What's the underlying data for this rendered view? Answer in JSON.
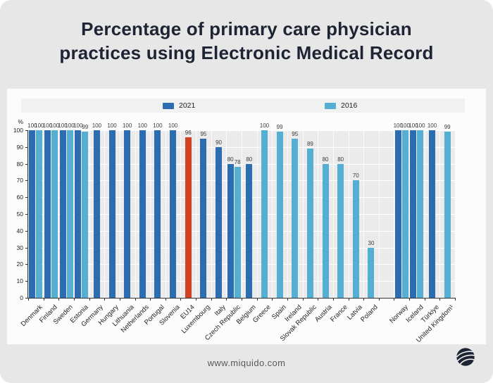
{
  "title": "Percentage of primary care physician practices using Electronic Medical Record",
  "footer": {
    "url": "www.miquido.com",
    "logo": "miquido-logo"
  },
  "chart_data": {
    "type": "bar",
    "title": "Percentage of primary care physician practices using Electronic Medical Record",
    "unit_label": "%",
    "xlabel": "",
    "ylabel": "%",
    "ylim": [
      0,
      100
    ],
    "yticks": [
      0,
      10,
      20,
      30,
      40,
      50,
      60,
      70,
      80,
      90,
      100
    ],
    "grid": "on",
    "legend_position": "top",
    "legend": [
      {
        "label": "2021",
        "color": "#2c6db2"
      },
      {
        "label": "2016",
        "color": "#54afd3"
      }
    ],
    "colors": {
      "s2021": "#2c6db2",
      "s2016": "#54afd3",
      "highlight": "#cd4323",
      "plot_background": "#ebebec"
    },
    "countries": [
      {
        "name": "Denmark",
        "y2021": 100,
        "y2016": 100
      },
      {
        "name": "Finland",
        "y2021": 100,
        "y2016": 100
      },
      {
        "name": "Sweden",
        "y2021": 100,
        "y2016": 100
      },
      {
        "name": "Estonia",
        "y2021": 100,
        "y2016": 99
      },
      {
        "name": "Germany",
        "y2021": 100
      },
      {
        "name": "Hungary",
        "y2021": 100
      },
      {
        "name": "Lithuania",
        "y2021": 100
      },
      {
        "name": "Netherlands",
        "y2021": 100
      },
      {
        "name": "Portugal",
        "y2021": 100
      },
      {
        "name": "Slovenia",
        "y2021": 100
      },
      {
        "name": "EU14",
        "y2021": 96,
        "highlight": true
      },
      {
        "name": "Luxembourg",
        "y2021": 95
      },
      {
        "name": "Italy",
        "y2021": 90
      },
      {
        "name": "Czech Republic",
        "y2021": 80,
        "y2016": 78
      },
      {
        "name": "Belgium",
        "y2021": 80
      },
      {
        "name": "Greece",
        "y2016": 100
      },
      {
        "name": "Spain",
        "y2016": 99
      },
      {
        "name": "Ireland",
        "y2016": 95
      },
      {
        "name": "Slovak Republic",
        "y2016": 89
      },
      {
        "name": "Austria",
        "y2016": 80
      },
      {
        "name": "France",
        "y2016": 80
      },
      {
        "name": "Latvia",
        "y2016": 70
      },
      {
        "name": "Poland",
        "y2016": 30
      },
      {
        "name": "",
        "spacer": true
      },
      {
        "name": "Norway",
        "y2021": 100,
        "y2016": 100
      },
      {
        "name": "Iceland",
        "y2021": 100,
        "y2016": 100
      },
      {
        "name": "Türkiye",
        "y2021": 100
      },
      {
        "name": "United Kingdom¹",
        "y2016": 99
      }
    ]
  }
}
